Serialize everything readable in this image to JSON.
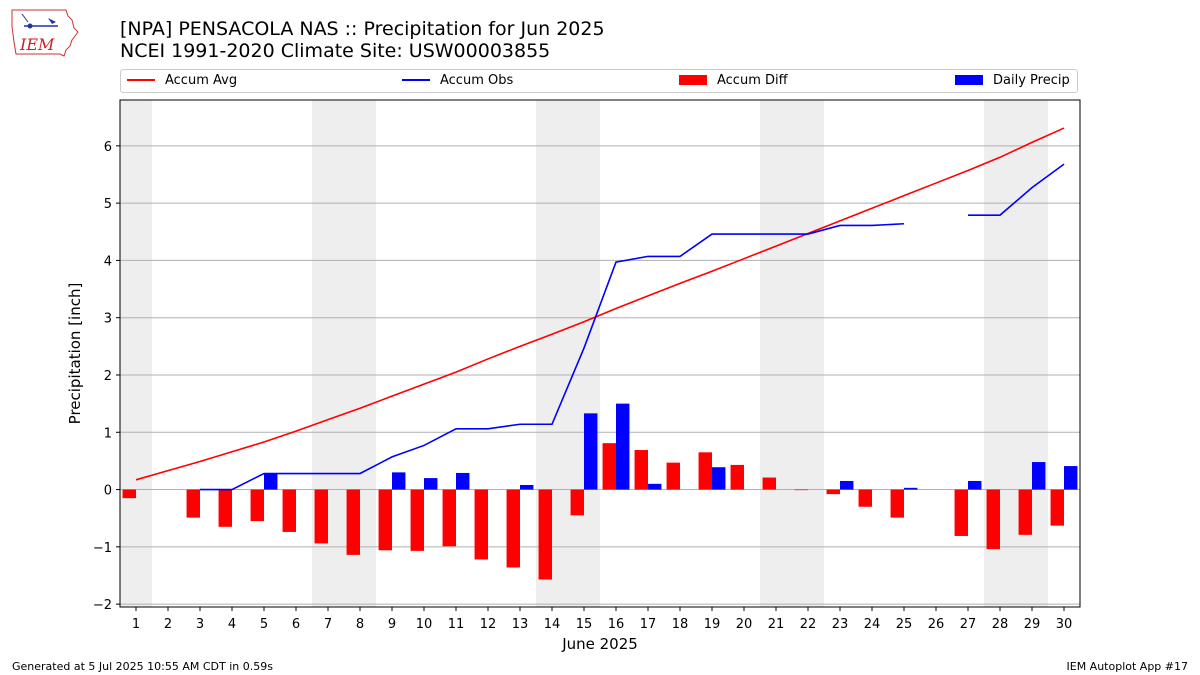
{
  "logo": {
    "text": "IEM",
    "icon": "iowa-state-weather-icon"
  },
  "header": {
    "title": "[NPA] PENSACOLA NAS :: Precipitation for Jun 2025",
    "subtitle": "NCEI 1991-2020 Climate Site: USW00003855"
  },
  "legend": {
    "placement": "top, above plot",
    "items": [
      {
        "label": "Accum Avg",
        "kind": "line",
        "color": "#ff0000"
      },
      {
        "label": "Accum Obs",
        "kind": "line",
        "color": "#0000ff"
      },
      {
        "label": "Accum Diff",
        "kind": "bar",
        "color": "#ff0000"
      },
      {
        "label": "Daily Precip",
        "kind": "bar",
        "color": "#0000ff"
      }
    ]
  },
  "footer": {
    "generated": "Generated at 5 Jul 2025 10:55 AM CDT in 0.59s",
    "app": "IEM Autoplot App #17"
  },
  "chart_data": {
    "type": "bar",
    "xlabel": "June 2025",
    "ylabel": "Precipitation [inch]",
    "x": [
      1,
      2,
      3,
      4,
      5,
      6,
      7,
      8,
      9,
      10,
      11,
      12,
      13,
      14,
      15,
      16,
      17,
      18,
      19,
      20,
      21,
      22,
      23,
      24,
      25,
      26,
      27,
      28,
      29,
      30
    ],
    "xlim": [
      0.5,
      30.5
    ],
    "ylim": [
      -2.05,
      6.8
    ],
    "yticks": [
      -2,
      -1,
      0,
      1,
      2,
      3,
      4,
      5,
      6
    ],
    "grid": "horizontal",
    "weekend_shading": [
      [
        0.5,
        1.5
      ],
      [
        6.5,
        8.5
      ],
      [
        13.5,
        15.5
      ],
      [
        20.5,
        22.5
      ],
      [
        27.5,
        29.5
      ]
    ],
    "shading_color": "#eeeeee",
    "series": [
      {
        "name": "Accum Avg",
        "kind": "line",
        "color": "#ff0000",
        "values": [
          0.17,
          0.33,
          0.49,
          0.66,
          0.83,
          1.02,
          1.22,
          1.42,
          1.63,
          1.84,
          2.05,
          2.28,
          2.5,
          2.71,
          2.93,
          3.16,
          3.38,
          3.6,
          3.81,
          4.03,
          4.25,
          4.47,
          4.69,
          4.91,
          5.13,
          5.35,
          5.57,
          5.8,
          6.06,
          6.31
        ]
      },
      {
        "name": "Accum Obs",
        "kind": "line",
        "color": "#0000ff",
        "values": [
          null,
          null,
          0.0,
          0.0,
          0.28,
          0.28,
          0.28,
          0.28,
          0.57,
          0.77,
          1.06,
          1.06,
          1.14,
          1.14,
          2.47,
          3.97,
          4.07,
          4.07,
          4.46,
          4.46,
          4.46,
          4.46,
          4.61,
          4.61,
          4.64,
          null,
          4.79,
          4.79,
          5.27,
          5.68
        ]
      },
      {
        "name": "Accum Diff",
        "kind": "bar",
        "color": "#ff0000",
        "values": [
          -0.15,
          null,
          -0.49,
          -0.65,
          -0.55,
          -0.74,
          -0.94,
          -1.14,
          -1.06,
          -1.07,
          -0.99,
          -1.22,
          -1.36,
          -1.57,
          -0.45,
          0.81,
          0.69,
          0.47,
          0.65,
          0.43,
          0.21,
          -0.01,
          -0.08,
          -0.3,
          -0.49,
          null,
          -0.81,
          -1.04,
          -0.79,
          -0.63
        ]
      },
      {
        "name": "Daily Precip",
        "kind": "bar",
        "color": "#0000ff",
        "values": [
          null,
          null,
          0.0,
          0.0,
          0.28,
          0.0,
          0.0,
          0.0,
          0.3,
          0.2,
          0.29,
          0.0,
          0.08,
          0.0,
          1.33,
          1.5,
          0.1,
          0.0,
          0.39,
          0.0,
          0.0,
          0.0,
          0.15,
          0.0,
          0.03,
          null,
          0.15,
          0.0,
          0.48,
          0.41
        ]
      }
    ]
  }
}
